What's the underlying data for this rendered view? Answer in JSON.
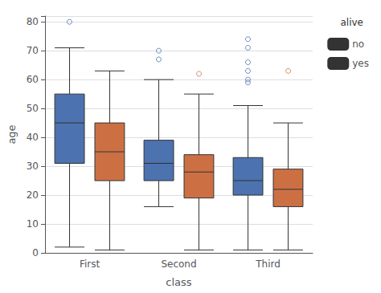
{
  "chart_data": {
    "type": "boxplot",
    "title": "",
    "xlabel": "class",
    "ylabel": "age",
    "categories": [
      "First",
      "Second",
      "Third"
    ],
    "legend_title": "alive",
    "legend": "upper right",
    "grid": true,
    "ylim": [
      0,
      82
    ],
    "yticks": [
      0,
      10,
      20,
      30,
      40,
      50,
      60,
      70,
      80
    ],
    "series": [
      {
        "name": "no",
        "color": "#4c72b0",
        "values": [
          {
            "whislo": 2,
            "q1": 31,
            "med": 45,
            "q3": 55,
            "whishi": 71,
            "fliers": [
              80
            ]
          },
          {
            "whislo": 16,
            "q1": 25,
            "med": 31,
            "q3": 39,
            "whishi": 60,
            "fliers": [
              67,
              70
            ]
          },
          {
            "whislo": 1,
            "q1": 20,
            "med": 25,
            "q3": 33,
            "whishi": 51,
            "fliers": [
              59,
              60,
              63,
              66,
              71,
              74
            ]
          }
        ]
      },
      {
        "name": "yes",
        "color": "#cc7044",
        "values": [
          {
            "whislo": 1,
            "q1": 25,
            "med": 35,
            "q3": 45,
            "whishi": 63,
            "fliers": []
          },
          {
            "whislo": 1,
            "q1": 19,
            "med": 28,
            "q3": 34,
            "whishi": 55,
            "fliers": [
              62
            ]
          },
          {
            "whislo": 1,
            "q1": 16,
            "med": 22,
            "q3": 29,
            "whishi": 45,
            "fliers": [
              63
            ]
          }
        ]
      }
    ]
  }
}
